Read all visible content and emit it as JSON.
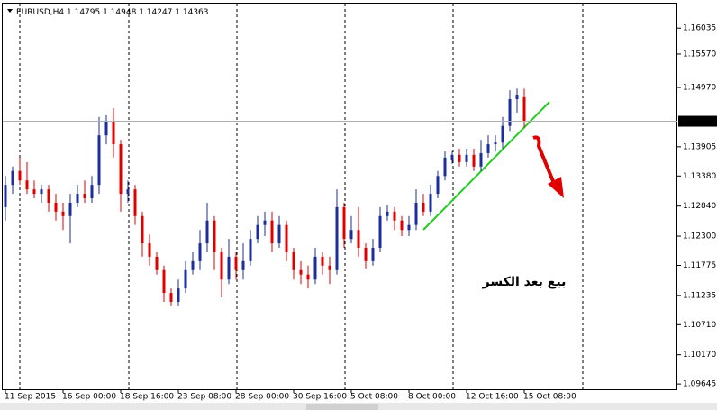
{
  "chart_data": {
    "type": "candlestick",
    "symbol": "EURUSD,H4",
    "categories": [
      "11 Sep 2015",
      null,
      null,
      null,
      null,
      null,
      null,
      null,
      "16 Sep 00:00",
      null,
      null,
      null,
      null,
      null,
      null,
      null,
      "18 Sep 16:00",
      null,
      null,
      null,
      null,
      null,
      null,
      null,
      "23 Sep 08:00",
      null,
      null,
      null,
      null,
      null,
      null,
      null,
      "28 Sep 00:00",
      null,
      null,
      null,
      null,
      null,
      null,
      null,
      "30 Sep 16:00",
      null,
      null,
      null,
      null,
      null,
      null,
      null,
      "5 Oct 08:00",
      null,
      null,
      null,
      null,
      null,
      null,
      null,
      "8 Oct 00:00",
      null,
      null,
      null,
      null,
      null,
      null,
      null,
      "12 Oct 16:00",
      null,
      null,
      null,
      null,
      null,
      null,
      null,
      "15 Oct 08:00"
    ],
    "open": [
      1.1282,
      1.1322,
      1.1347,
      1.133,
      1.1314,
      1.1306,
      1.1314,
      1.129,
      1.1274,
      1.1266,
      1.129,
      1.1306,
      1.1298,
      1.1322,
      1.1411,
      1.1436,
      1.1395,
      1.1306,
      1.1314,
      1.1266,
      1.1217,
      1.1193,
      1.1169,
      1.1128,
      1.1112,
      1.1136,
      1.1169,
      1.1185,
      1.1217,
      1.1258,
      1.1201,
      1.1152,
      1.1193,
      1.1169,
      1.1185,
      1.1225,
      1.125,
      1.1258,
      1.1217,
      1.125,
      1.1201,
      1.1169,
      1.1161,
      1.1152,
      1.1193,
      1.1177,
      1.1169,
      1.1282,
      1.1225,
      1.1241,
      1.1209,
      1.1185,
      1.1209,
      1.1266,
      1.1274,
      1.1258,
      1.1241,
      1.125,
      1.129,
      1.1274,
      1.1306,
      1.1338,
      1.1366,
      1.1376,
      1.1363,
      1.1376,
      1.1355,
      1.1379,
      1.1395,
      1.1398,
      1.1428,
      1.1476,
      1.14795
    ],
    "high": [
      1.1338,
      1.1355,
      1.1371,
      1.1363,
      1.133,
      1.1322,
      1.1322,
      1.1306,
      1.129,
      1.1306,
      1.1322,
      1.133,
      1.1338,
      1.1444,
      1.1447,
      1.146,
      1.1403,
      1.133,
      1.1322,
      1.1274,
      1.1233,
      1.1201,
      1.1177,
      1.1136,
      1.1152,
      1.1185,
      1.1201,
      1.1241,
      1.129,
      1.1266,
      1.1209,
      1.1225,
      1.1201,
      1.1217,
      1.1241,
      1.1266,
      1.1274,
      1.1274,
      1.1266,
      1.1258,
      1.1209,
      1.1185,
      1.1177,
      1.1209,
      1.1201,
      1.1193,
      1.1314,
      1.129,
      1.1266,
      1.1282,
      1.1217,
      1.1225,
      1.1282,
      1.1285,
      1.1282,
      1.1266,
      1.1266,
      1.1314,
      1.1306,
      1.1322,
      1.1347,
      1.1382,
      1.1382,
      1.1387,
      1.1387,
      1.1387,
      1.1403,
      1.1411,
      1.1411,
      1.1444,
      1.1492,
      1.1495,
      1.14948
    ],
    "low": [
      1.1258,
      1.1306,
      1.1322,
      1.1306,
      1.1298,
      1.129,
      1.1274,
      1.1258,
      1.1241,
      1.1217,
      1.1282,
      1.129,
      1.129,
      1.1306,
      1.1395,
      1.1371,
      1.1274,
      1.129,
      1.125,
      1.1193,
      1.1177,
      1.1161,
      1.1112,
      1.1104,
      1.1104,
      1.1128,
      1.1161,
      1.1169,
      1.1201,
      1.1169,
      1.112,
      1.1144,
      1.1152,
      1.1152,
      1.1177,
      1.1217,
      1.123,
      1.1201,
      1.1209,
      1.1185,
      1.1152,
      1.1144,
      1.1136,
      1.1144,
      1.1161,
      1.1144,
      1.1161,
      1.1209,
      1.1217,
      1.1193,
      1.1172,
      1.1177,
      1.1201,
      1.1258,
      1.1241,
      1.123,
      1.123,
      1.1241,
      1.1266,
      1.1266,
      1.1298,
      1.133,
      1.136,
      1.1355,
      1.1355,
      1.1347,
      1.1347,
      1.1371,
      1.1382,
      1.1387,
      1.1419,
      1.1452,
      1.14247
    ],
    "close": [
      1.1322,
      1.1347,
      1.133,
      1.1314,
      1.1306,
      1.1314,
      1.129,
      1.1274,
      1.1266,
      1.129,
      1.1306,
      1.1298,
      1.1322,
      1.1411,
      1.1436,
      1.1395,
      1.1306,
      1.1314,
      1.1266,
      1.1217,
      1.1193,
      1.1169,
      1.1128,
      1.1112,
      1.1136,
      1.1169,
      1.1185,
      1.1217,
      1.1258,
      1.1201,
      1.1152,
      1.1193,
      1.1169,
      1.1185,
      1.1225,
      1.125,
      1.1258,
      1.1217,
      1.125,
      1.1201,
      1.1169,
      1.1161,
      1.1152,
      1.1193,
      1.1177,
      1.1169,
      1.1282,
      1.1225,
      1.1241,
      1.1209,
      1.1185,
      1.1209,
      1.1266,
      1.1274,
      1.1258,
      1.1241,
      1.125,
      1.129,
      1.1274,
      1.1306,
      1.1338,
      1.1371,
      1.1376,
      1.1363,
      1.1376,
      1.1355,
      1.1379,
      1.1395,
      1.1398,
      1.1428,
      1.1476,
      1.1484,
      1.14363
    ],
    "up_color": "#1c2d9e",
    "down_color": "#e00000",
    "ylim": [
      1.0955,
      1.1654
    ],
    "yticks": [
      1.16035,
      {
        "value": 1.1557,
        "label": "1.15570"
      },
      {
        "value": 1.1497,
        "label": "1.14970"
      },
      1.13905,
      {
        "value": 1.1338,
        "label": "1.13380"
      },
      {
        "value": 1.1284,
        "label": "1.12840"
      },
      {
        "value": 1.123,
        "label": "1.12300"
      },
      1.11775,
      1.11235,
      {
        "value": 1.1071,
        "label": "1.10710"
      },
      {
        "value": 1.1017,
        "label": "1.10170"
      },
      1.09645
    ],
    "annotation": "بيع بعد الكسر",
    "annotation_color": "#e00000"
  }
}
